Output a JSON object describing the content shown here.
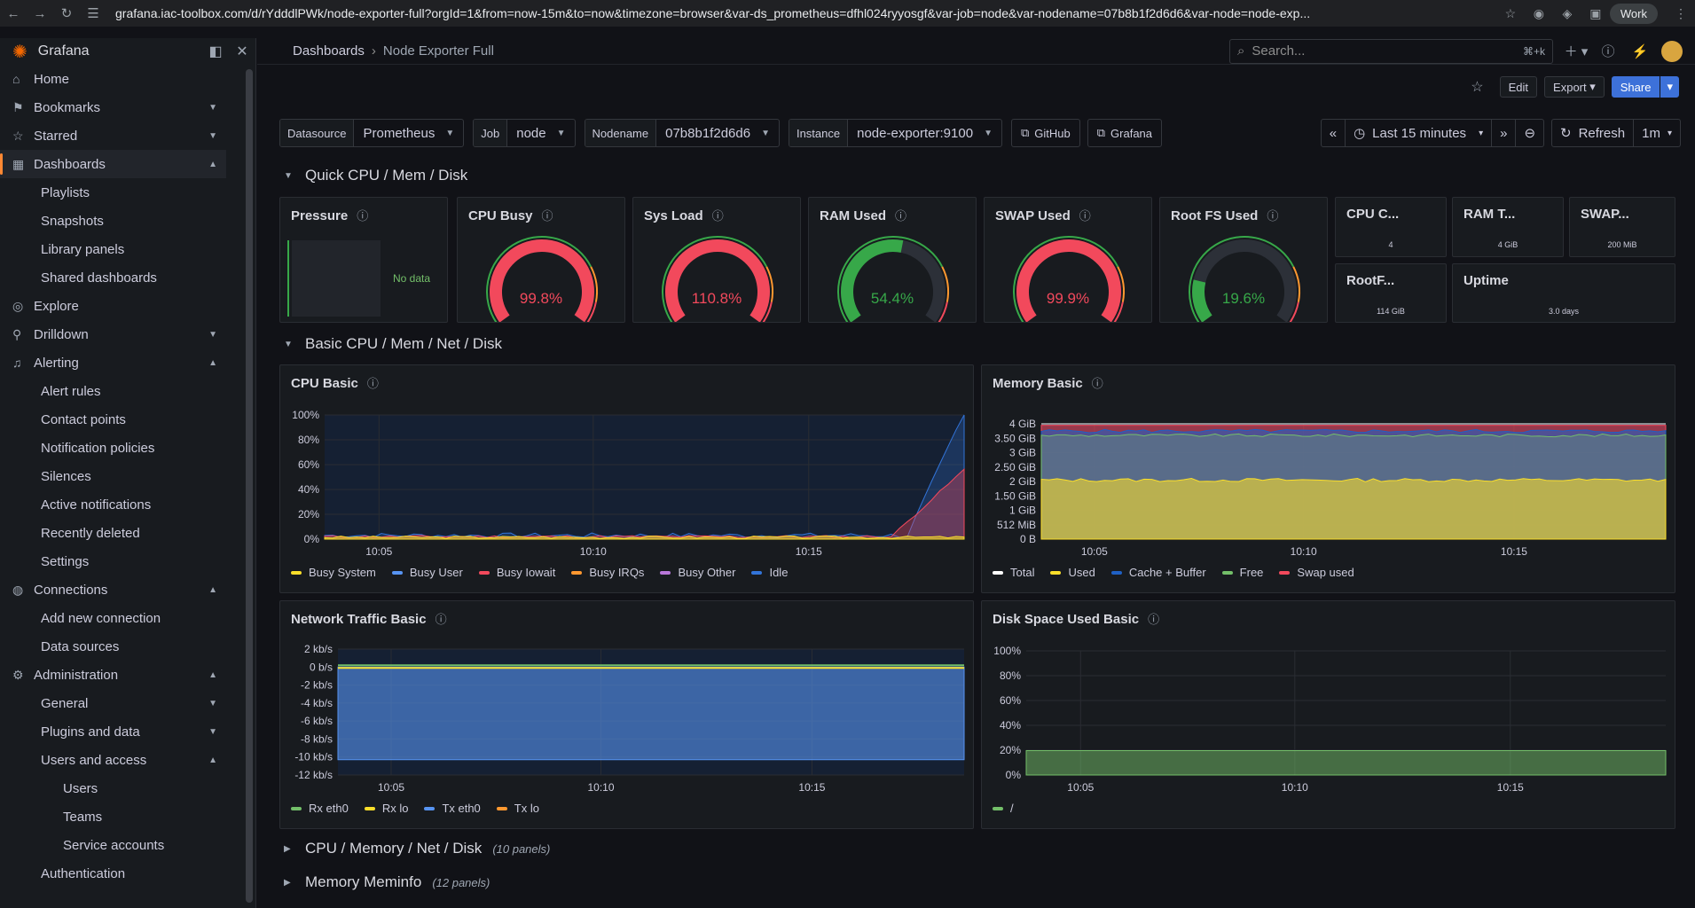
{
  "browser": {
    "url": "grafana.iac-toolbox.com/d/rYdddlPWk/node-exporter-full?orgId=1&from=now-15m&to=now&timezone=browser&var-ds_prometheus=dfhl024ryyosgf&var-job=node&var-nodename=07b8b1f2d6d6&var-node=node-exp...",
    "profile": "Work"
  },
  "sidebar": {
    "brand": "Grafana",
    "items": [
      {
        "label": "Home",
        "icon": "home-icon",
        "level": 0
      },
      {
        "label": "Bookmarks",
        "icon": "bookmark-icon",
        "level": 0,
        "chev": "down"
      },
      {
        "label": "Starred",
        "icon": "star-icon",
        "level": 0,
        "chev": "down"
      },
      {
        "label": "Dashboards",
        "icon": "dashboards-icon",
        "level": 0,
        "chev": "up",
        "active": true
      },
      {
        "label": "Playlists",
        "level": 1
      },
      {
        "label": "Snapshots",
        "level": 1
      },
      {
        "label": "Library panels",
        "level": 1
      },
      {
        "label": "Shared dashboards",
        "level": 1
      },
      {
        "label": "Explore",
        "icon": "compass-icon",
        "level": 0
      },
      {
        "label": "Drilldown",
        "icon": "drilldown-icon",
        "level": 0,
        "chev": "down"
      },
      {
        "label": "Alerting",
        "icon": "bell-icon",
        "level": 0,
        "chev": "up"
      },
      {
        "label": "Alert rules",
        "level": 1
      },
      {
        "label": "Contact points",
        "level": 1
      },
      {
        "label": "Notification policies",
        "level": 1
      },
      {
        "label": "Silences",
        "level": 1
      },
      {
        "label": "Active notifications",
        "level": 1
      },
      {
        "label": "Recently deleted",
        "level": 1
      },
      {
        "label": "Settings",
        "level": 1
      },
      {
        "label": "Connections",
        "icon": "connections-icon",
        "level": 0,
        "chev": "up"
      },
      {
        "label": "Add new connection",
        "level": 1
      },
      {
        "label": "Data sources",
        "level": 1
      },
      {
        "label": "Administration",
        "icon": "gear-icon",
        "level": 0,
        "chev": "up"
      },
      {
        "label": "General",
        "level": 1,
        "chev": "down"
      },
      {
        "label": "Plugins and data",
        "level": 1,
        "chev": "down"
      },
      {
        "label": "Users and access",
        "level": 1,
        "chev": "up"
      },
      {
        "label": "Users",
        "level": 2
      },
      {
        "label": "Teams",
        "level": 2
      },
      {
        "label": "Service accounts",
        "level": 2
      },
      {
        "label": "Authentication",
        "level": 1
      }
    ]
  },
  "header": {
    "crumb_root": "Dashboards",
    "crumb_current": "Node Exporter Full",
    "search_placeholder": "Search...",
    "search_shortcut": "⌘+k"
  },
  "toolbar": {
    "edit": "Edit",
    "export": "Export",
    "share": "Share"
  },
  "variables": [
    {
      "label": "Datasource",
      "value": "Prometheus"
    },
    {
      "label": "Job",
      "value": "node"
    },
    {
      "label": "Nodename",
      "value": "07b8b1f2d6d6"
    },
    {
      "label": "Instance",
      "value": "node-exporter:9100"
    }
  ],
  "links": [
    "GitHub",
    "Grafana"
  ],
  "time": {
    "range": "Last 15 minutes",
    "refresh": "Refresh",
    "interval": "1m"
  },
  "rows": [
    {
      "title": "Quick CPU / Mem / Disk",
      "collapsed": false
    },
    {
      "title": "Basic CPU / Mem / Net / Disk",
      "collapsed": false
    },
    {
      "title": "CPU / Memory / Net / Disk",
      "collapsed": true,
      "count": "(10 panels)"
    },
    {
      "title": "Memory Meminfo",
      "collapsed": true,
      "count": "(12 panels)"
    }
  ],
  "pressure": {
    "title": "Pressure",
    "nodata": "No data"
  },
  "gauges": [
    {
      "title": "CPU Busy",
      "value": "99.8%",
      "pct": 99.8,
      "color": "#f2495c"
    },
    {
      "title": "Sys Load",
      "value": "110.8%",
      "pct": 100,
      "color": "#f2495c"
    },
    {
      "title": "RAM Used",
      "value": "54.4%",
      "pct": 54.4,
      "color": "#37a849"
    },
    {
      "title": "SWAP Used",
      "value": "99.9%",
      "pct": 99.9,
      "color": "#f2495c"
    },
    {
      "title": "Root FS Used",
      "value": "19.6%",
      "pct": 19.6,
      "color": "#37a849"
    }
  ],
  "stats": [
    {
      "title": "CPU C...",
      "value": "4"
    },
    {
      "title": "RAM T...",
      "value": "4 GiB"
    },
    {
      "title": "SWAP...",
      "value": "200 MiB"
    },
    {
      "title": "RootF...",
      "value": "114 GiB"
    },
    {
      "title": "Uptime",
      "value": "3.0 days"
    }
  ],
  "chart_data": [
    {
      "type": "area",
      "title": "CPU Basic",
      "x_ticks": [
        "10:05",
        "10:10",
        "10:15"
      ],
      "y_ticks": [
        "0%",
        "20%",
        "40%",
        "60%",
        "80%",
        "100%"
      ],
      "ylim": [
        0,
        100
      ],
      "series": [
        {
          "name": "Busy System",
          "color": "#fade2a"
        },
        {
          "name": "Busy User",
          "color": "#5794f2"
        },
        {
          "name": "Busy Iowait",
          "color": "#f2495c"
        },
        {
          "name": "Busy IRQs",
          "color": "#ff9830"
        },
        {
          "name": "Busy Other",
          "color": "#b877d9"
        },
        {
          "name": "Idle",
          "color": "#3274d9"
        }
      ]
    },
    {
      "type": "area",
      "title": "Memory Basic",
      "x_ticks": [
        "10:05",
        "10:10",
        "10:15"
      ],
      "y_ticks": [
        "0 B",
        "512 MiB",
        "1 GiB",
        "1.50 GiB",
        "2 GiB",
        "2.50 GiB",
        "3 GiB",
        "3.50 GiB",
        "4 GiB"
      ],
      "ylim": [
        0,
        4
      ],
      "series": [
        {
          "name": "Total",
          "color": "#ffffff"
        },
        {
          "name": "Used",
          "color": "#fade2a"
        },
        {
          "name": "Cache + Buffer",
          "color": "#1f60c4"
        },
        {
          "name": "Free",
          "color": "#73bf69"
        },
        {
          "name": "Swap used",
          "color": "#f2495c"
        }
      ]
    },
    {
      "type": "area",
      "title": "Network Traffic Basic",
      "x_ticks": [
        "10:05",
        "10:10",
        "10:15"
      ],
      "y_ticks": [
        "-12 kb/s",
        "-10 kb/s",
        "-8 kb/s",
        "-6 kb/s",
        "-4 kb/s",
        "-2 kb/s",
        "0 b/s",
        "2 kb/s"
      ],
      "ylim": [
        -12,
        2
      ],
      "series": [
        {
          "name": "Rx eth0",
          "color": "#73bf69"
        },
        {
          "name": "Rx lo",
          "color": "#fade2a"
        },
        {
          "name": "Tx eth0",
          "color": "#5794f2"
        },
        {
          "name": "Tx lo",
          "color": "#ff9830"
        }
      ]
    },
    {
      "type": "area",
      "title": "Disk Space Used Basic",
      "x_ticks": [
        "10:05",
        "10:10",
        "10:15"
      ],
      "y_ticks": [
        "0%",
        "20%",
        "40%",
        "60%",
        "80%",
        "100%"
      ],
      "ylim": [
        0,
        100
      ],
      "series": [
        {
          "name": "/",
          "color": "#73bf69",
          "values": [
            19.6,
            19.6,
            19.6,
            19.6
          ]
        }
      ]
    }
  ]
}
